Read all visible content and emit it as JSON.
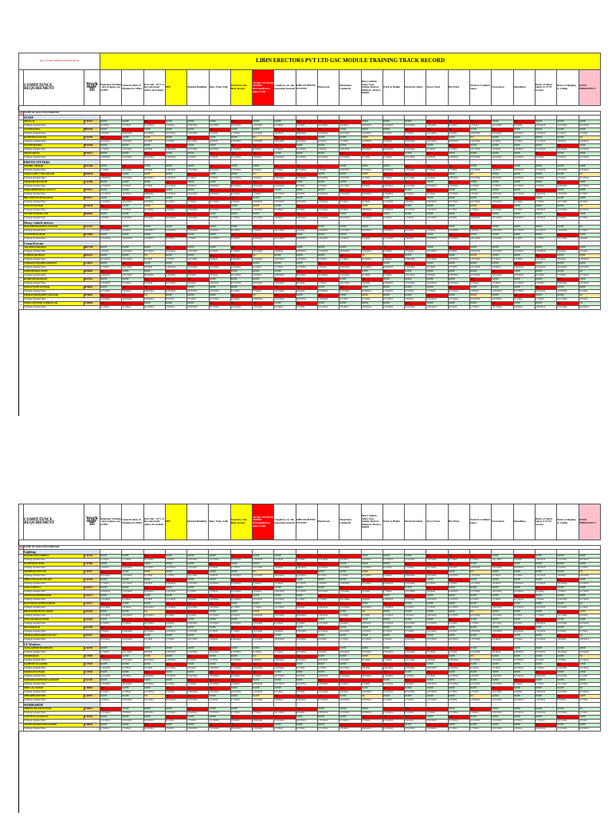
{
  "header": {
    "title": "LIBIN ERECTORS PVT LTD GSC MODULE TRAINING TRACK RECORD",
    "note": "Note: VCMO TRDM 02/01/2024 UP TO",
    "competence": "COMPETENCE REQUIREMENT",
    "work_id": "Work man- ID",
    "sno": "S.no",
    "name_col": "NAME OF SKILLED WORKERS"
  },
  "columns": [
    "Induction Training - incl. hygiene, use of PPE",
    "General Safety & Hygiene for Office",
    "First-Aid - 10% of the contracted staff to be trained",
    "PPE",
    "Manual Handling",
    "Slips, Trips, Falls",
    "Stretch by Sun Heat Awards",
    "WORK ON NEAR WATER (Paramedical to paper LSD)",
    "Caught by on- the hazardous hazards",
    "FIRE FIGHTING SYSTEM",
    "Hand tools",
    "Hazardous Chemicals",
    "Heavy Vehicle Safety Gen., Vehicle, Bulvers, Dumpers, Dozers, Rugger",
    "Work at Height",
    "Electrical Safety",
    "Power Tools",
    "Hot Work",
    "Work in Confined Space",
    "Excavation",
    "Demolition",
    "Basics of Safety Safety & TCW System",
    "Basics of Rigging & Lifting",
    "ROAD EMERGENCY"
  ],
  "attended": "Training attended Date",
  "page1": {
    "groups": [
      {
        "category": "STAFF",
        "workers": [
          {
            "no": "1",
            "name": "SHAJU M",
            "id": "L55721",
            "status": "g"
          },
          {
            "no": "2",
            "name": "SUJITH KAKA",
            "id": "B82520",
            "status": "g"
          },
          {
            "no": "3",
            "name": "RATHI BALDAGATI",
            "id": "L54706",
            "status": "y"
          },
          {
            "no": "4",
            "name": "SUJITH HAMSA",
            "id": "R26168",
            "status": "g"
          },
          {
            "no": "5",
            "name": "SHANI MOAN",
            "id": "R35611",
            "status": "g"
          }
        ]
      },
      {
        "category": "PHOTO FITTERS",
        "workers": [
          {
            "no": "6",
            "name": "MUSHIL AHMAD",
            "id": "R21288",
            "status": "g"
          },
          {
            "no": "7",
            "name": "SARAS APPU CHACAKARI",
            "id": "R66058",
            "status": "y"
          },
          {
            "no": "8",
            "name": "SHAHAMI MANSOH",
            "id": "L54706",
            "status": "g"
          },
          {
            "no": "9",
            "name": "MOHAMMEDHALI ASULLA",
            "id": "R79527",
            "status": "g"
          },
          {
            "no": "10",
            "name": "IBRAHIM KUNHAKABAR",
            "id": "R79527",
            "status": "g"
          },
          {
            "no": "11",
            "name": "JENSON KUMAR",
            "id": "R76538",
            "status": "y"
          },
          {
            "no": "12",
            "name": "ANOOP KUMAR CAR",
            "id": "R68963",
            "status": "g"
          }
        ]
      },
      {
        "category": "Heavy vehicle drivers",
        "workers": [
          {
            "no": "13",
            "name": "PARAMESHAM MALAGANGI",
            "id": "R21362",
            "status": "g"
          },
          {
            "no": "14",
            "name": "SANTOSH KUMAR",
            "id": "R12068",
            "status": "g"
          }
        ]
      },
      {
        "category": "Crane/Erector",
        "workers": [
          {
            "no": "15",
            "name": "YALAPPA PAKHALI",
            "id": "R67738",
            "status": "g"
          },
          {
            "no": "16",
            "name": "SUDHAKAR BAGU",
            "id": "R83513",
            "status": "y"
          },
          {
            "no": "17",
            "name": "CHIDANANDANDIGAMANTI",
            "id": "L10616",
            "status": "g"
          },
          {
            "no": "18",
            "name": "SURESH BAGUWANI",
            "id": "R28961",
            "status": "g"
          },
          {
            "no": "19",
            "name": "RAMKUMARASKAN",
            "id": "R57961",
            "status": "g"
          },
          {
            "no": "20",
            "name": "MANJUNATH GUNDAL",
            "id": "R78061",
            "status": "g"
          },
          {
            "no": "21",
            "name": "SHARANABASAPPA SATAGAR",
            "id": "R78061",
            "status": "y"
          },
          {
            "no": "22",
            "name": "SHAILUKUMAR SUBHASCAR",
            "id": "L58009",
            "status": "g"
          }
        ]
      }
    ]
  },
  "page2": {
    "groups": [
      {
        "category": "Lighting",
        "workers": [
          {
            "no": "1",
            "name": "PRASHANTH ADHOLI",
            "id": "L50134",
            "status": "g"
          },
          {
            "no": "2",
            "name": "RAMESH KUMAR",
            "id": "L54100",
            "status": "g"
          },
          {
            "no": "3",
            "name": "SHUBHAM PATTAR",
            "id": "L54317",
            "status": "y"
          },
          {
            "no": "4",
            "name": "SHRALINGESH ANGADI",
            "id": "L54128",
            "status": "g"
          },
          {
            "no": "5",
            "name": "SARCANESH G",
            "id": "L64213",
            "status": "g"
          },
          {
            "no": "6",
            "name": "SHAHAJIYDDINHAWAR",
            "id": "L64273",
            "status": "g"
          },
          {
            "no": "7",
            "name": "BASAVARAJ KEMANAHATI",
            "id": "L54277",
            "status": "g"
          },
          {
            "no": "8",
            "name": "BHARATHESH TALAWAR",
            "id": "L64435",
            "status": "y"
          },
          {
            "no": "9",
            "name": "MALLIKARJUN PATIL",
            "id": "L64438",
            "status": "g"
          },
          {
            "no": "10",
            "name": "BASAVARAJ B",
            "id": "L61269",
            "status": "g"
          },
          {
            "no": "11",
            "name": "SHARANABASAPPA YALAGI",
            "id": "L64437",
            "status": "g"
          }
        ]
      },
      {
        "category": "LT Workers",
        "workers": [
          {
            "no": "1",
            "name": "SANGAMESH HADIMANI",
            "id": "L54378",
            "status": "g"
          },
          {
            "no": "2",
            "name": "SHAHKIRAR",
            "id": "L17929",
            "status": "y"
          },
          {
            "no": "3",
            "name": "RAMESH JALAGERI",
            "id": "L17929",
            "status": "g"
          },
          {
            "no": "4",
            "name": "SHAHAJUKUMAR",
            "id": "L17640",
            "status": "g"
          },
          {
            "no": "5",
            "name": "MAHABALESHWAR KASRAGE",
            "id": "L61349",
            "status": "g"
          },
          {
            "no": "6",
            "name": "SHIVLAL NAYAK",
            "id": "L28094",
            "status": "g"
          },
          {
            "no": "7",
            "name": "SHIVAPPA PATTED",
            "id": "L41957",
            "status": "y"
          }
        ]
      },
      {
        "category": "WORKSHOP",
        "workers": [
          {
            "no": "1",
            "name": "SHREESAILAM JETTAR",
            "id": "L58012",
            "status": "g"
          },
          {
            "no": "2",
            "name": "SATISH ALAGAWALE",
            "id": "L58136",
            "status": "g"
          },
          {
            "no": "3",
            "name": "SHANKARAPPA HALLIMARI",
            "id": "L28094",
            "status": "g"
          }
        ]
      }
    ]
  },
  "dates": [
    "0/1/2024",
    "1/7/2024",
    "12/1/2024",
    "1/9/2024",
    "2/29/2024",
    "3/15/2024",
    "10/4/2024",
    "1/23/2024"
  ],
  "cell_codes": [
    "DONE",
    "DONE",
    "NO",
    "DONE",
    "DONE",
    "DONE",
    "NO",
    "DONE",
    "DONE",
    "NO",
    "NO",
    "NO",
    "DONE",
    "DONE",
    "DONE",
    "NO",
    "NO",
    "NO",
    "DONE",
    "NO",
    "DONE",
    "DONE"
  ],
  "colors": {
    "yellow": "#ffff00",
    "green": "#c6efce",
    "red": "#ff0000",
    "pink": "#ffc0cb",
    "blue": "#dce6f1"
  }
}
